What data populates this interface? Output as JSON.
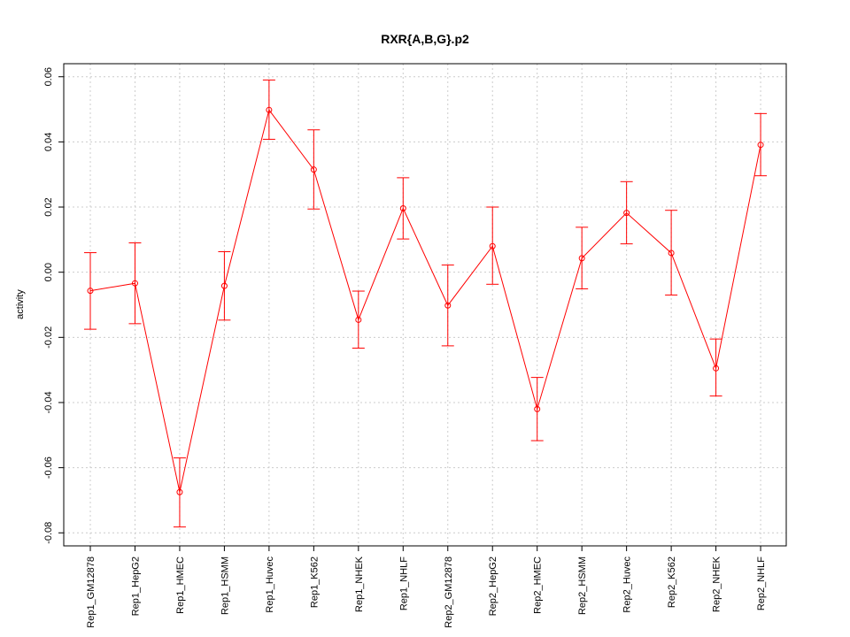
{
  "chart_data": {
    "type": "line",
    "title": "RXR{A,B,G}.p2",
    "xlabel": "",
    "ylabel": "activity",
    "ylim": [
      -0.084,
      0.064
    ],
    "yticks": [
      -0.08,
      -0.06,
      -0.04,
      -0.02,
      0.0,
      0.02,
      0.04,
      0.06
    ],
    "ytick_labels": [
      "-0.08",
      "-0.06",
      "-0.04",
      "-0.02",
      "0.00",
      "0.02",
      "0.04",
      "0.06"
    ],
    "grid": true,
    "categories": [
      "Rep1_GM12878",
      "Rep1_HepG2",
      "Rep1_HMEC",
      "Rep1_HSMM",
      "Rep1_Huvec",
      "Rep1_K562",
      "Rep1_NHEK",
      "Rep1_NHLF",
      "Rep2_GM12878",
      "Rep2_HepG2",
      "Rep2_HMEC",
      "Rep2_HSMM",
      "Rep2_Huvec",
      "Rep2_K562",
      "Rep2_NHEK",
      "Rep2_NHLF"
    ],
    "series": [
      {
        "values": [
          -0.0057,
          -0.0034,
          -0.0675,
          -0.0042,
          0.0498,
          0.0315,
          -0.0146,
          0.0196,
          -0.0102,
          0.008,
          -0.042,
          0.0043,
          0.0182,
          0.0059,
          -0.0295,
          0.0391
        ],
        "upper": [
          0.006,
          0.009,
          -0.057,
          0.0063,
          0.059,
          0.0437,
          -0.0058,
          0.029,
          0.0022,
          0.02,
          -0.0323,
          0.0138,
          0.0278,
          0.019,
          -0.0205,
          0.0487
        ],
        "lower": [
          -0.0175,
          -0.0158,
          -0.0782,
          -0.0147,
          0.0408,
          0.0194,
          -0.0233,
          0.0102,
          -0.0226,
          -0.0037,
          -0.0517,
          -0.0051,
          0.0087,
          -0.007,
          -0.038,
          0.0296
        ],
        "color": "#ff0000"
      }
    ]
  }
}
